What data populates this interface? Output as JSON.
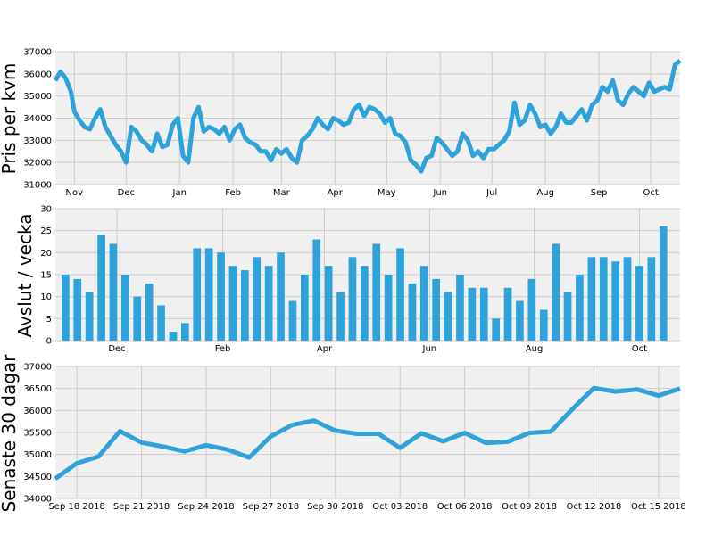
{
  "colors": {
    "series": "#30a2da",
    "background": "#f0f0f0",
    "grid": "#cbcbcb"
  },
  "chart_data": [
    {
      "type": "line",
      "ylabel": "Pris per kvm",
      "ylim": [
        31000,
        37000
      ],
      "yticks": [
        31000,
        32000,
        33000,
        34000,
        35000,
        36000,
        37000
      ],
      "xlim": [
        "2017-10-21",
        "2018-10-18"
      ],
      "xticks": [
        {
          "date": "2017-11-01",
          "label": "Nov"
        },
        {
          "date": "2017-12-01",
          "label": "Dec"
        },
        {
          "date": "2018-01-01",
          "label": "Jan"
        },
        {
          "date": "2018-02-01",
          "label": "Feb"
        },
        {
          "date": "2018-03-01",
          "label": "Mar"
        },
        {
          "date": "2018-04-01",
          "label": "Apr"
        },
        {
          "date": "2018-05-01",
          "label": "May"
        },
        {
          "date": "2018-06-01",
          "label": "Jun"
        },
        {
          "date": "2018-07-01",
          "label": "Jul"
        },
        {
          "date": "2018-08-01",
          "label": "Aug"
        },
        {
          "date": "2018-09-01",
          "label": "Sep"
        },
        {
          "date": "2018-10-01",
          "label": "Oct"
        }
      ],
      "grid": true,
      "series": [
        {
          "x": [
            "2017-10-21",
            "2017-10-24",
            "2017-10-27",
            "2017-10-30",
            "2017-11-01",
            "2017-11-04",
            "2017-11-07",
            "2017-11-10",
            "2017-11-13",
            "2017-11-16",
            "2017-11-19",
            "2017-11-22",
            "2017-11-25",
            "2017-11-28",
            "2017-12-01",
            "2017-12-04",
            "2017-12-07",
            "2017-12-10",
            "2017-12-13",
            "2017-12-16",
            "2017-12-19",
            "2017-12-22",
            "2017-12-25",
            "2017-12-28",
            "2017-12-31",
            "2018-01-03",
            "2018-01-06",
            "2018-01-09",
            "2018-01-12",
            "2018-01-15",
            "2018-01-18",
            "2018-01-21",
            "2018-01-24",
            "2018-01-27",
            "2018-01-30",
            "2018-02-02",
            "2018-02-05",
            "2018-02-08",
            "2018-02-11",
            "2018-02-14",
            "2018-02-17",
            "2018-02-20",
            "2018-02-23",
            "2018-02-26",
            "2018-03-01",
            "2018-03-04",
            "2018-03-07",
            "2018-03-10",
            "2018-03-13",
            "2018-03-16",
            "2018-03-19",
            "2018-03-22",
            "2018-03-25",
            "2018-03-28",
            "2018-03-31",
            "2018-04-03",
            "2018-04-06",
            "2018-04-09",
            "2018-04-12",
            "2018-04-15",
            "2018-04-18",
            "2018-04-21",
            "2018-04-24",
            "2018-04-27",
            "2018-04-30",
            "2018-05-03",
            "2018-05-06",
            "2018-05-09",
            "2018-05-12",
            "2018-05-15",
            "2018-05-18",
            "2018-05-21",
            "2018-05-24",
            "2018-05-27",
            "2018-05-30",
            "2018-06-02",
            "2018-06-05",
            "2018-06-08",
            "2018-06-11",
            "2018-06-14",
            "2018-06-17",
            "2018-06-20",
            "2018-06-23",
            "2018-06-26",
            "2018-06-29",
            "2018-07-02",
            "2018-07-05",
            "2018-07-08",
            "2018-07-11",
            "2018-07-14",
            "2018-07-17",
            "2018-07-20",
            "2018-07-23",
            "2018-07-26",
            "2018-07-29",
            "2018-08-01",
            "2018-08-04",
            "2018-08-07",
            "2018-08-10",
            "2018-08-13",
            "2018-08-16",
            "2018-08-19",
            "2018-08-22",
            "2018-08-25",
            "2018-08-28",
            "2018-08-31",
            "2018-09-03",
            "2018-09-06",
            "2018-09-09",
            "2018-09-12",
            "2018-09-15",
            "2018-09-18",
            "2018-09-21",
            "2018-09-24",
            "2018-09-27",
            "2018-09-30",
            "2018-10-03",
            "2018-10-06",
            "2018-10-09",
            "2018-10-12",
            "2018-10-15",
            "2018-10-18"
          ],
          "values": [
            35700,
            36100,
            35800,
            35200,
            34300,
            33900,
            33600,
            33500,
            34000,
            34400,
            33600,
            33200,
            32800,
            32500,
            32000,
            33600,
            33400,
            33000,
            32800,
            32500,
            33300,
            32700,
            32800,
            33700,
            34000,
            32300,
            32000,
            34000,
            34500,
            33400,
            33600,
            33500,
            33300,
            33600,
            33000,
            33500,
            33700,
            33100,
            32900,
            32800,
            32500,
            32500,
            32100,
            32600,
            32400,
            32600,
            32200,
            32000,
            33000,
            33200,
            33500,
            34000,
            33700,
            33500,
            34000,
            33900,
            33700,
            33800,
            34400,
            34600,
            34100,
            34500,
            34400,
            34200,
            33800,
            34000,
            33300,
            33200,
            32900,
            32100,
            31900,
            31600,
            32200,
            32300,
            33100,
            32900,
            32600,
            32300,
            32500,
            33300,
            33000,
            32300,
            32500,
            32200,
            32600,
            32600,
            32800,
            33000,
            33400,
            34700,
            33700,
            33900,
            34600,
            34200,
            33600,
            33700,
            33300,
            33600,
            34200,
            33800,
            33800,
            34100,
            34400,
            33900,
            34600,
            34800,
            35400,
            35200,
            35700,
            34800,
            34600,
            35100,
            35400,
            35200,
            35000,
            35600,
            35200,
            35300,
            35400,
            35300,
            36400,
            36600
          ]
        }
      ]
    },
    {
      "type": "bar",
      "ylabel": "Avslut / vecka",
      "ylim": [
        0,
        30
      ],
      "yticks": [
        0,
        5,
        10,
        15,
        20,
        25,
        30
      ],
      "xlim": [
        -0.85,
        51.4
      ],
      "xticks": [
        {
          "pos": 4.3,
          "label": "Dec"
        },
        {
          "pos": 13.15,
          "label": "Feb"
        },
        {
          "pos": 21.65,
          "label": "Apr"
        },
        {
          "pos": 30.45,
          "label": "Jun"
        },
        {
          "pos": 39.2,
          "label": "Aug"
        },
        {
          "pos": 48.0,
          "label": "Oct"
        }
      ],
      "grid": true,
      "series": [
        {
          "values": [
            15,
            14,
            11,
            24,
            22,
            15,
            10,
            13,
            8,
            2,
            4,
            21,
            21,
            20,
            17,
            16,
            19,
            17,
            20,
            9,
            15,
            23,
            17,
            11,
            19,
            17,
            22,
            15,
            21,
            13,
            17,
            14,
            11,
            15,
            12,
            12,
            5,
            12,
            9,
            14,
            7,
            22,
            11,
            15,
            19,
            19,
            18,
            19,
            17,
            19,
            26
          ]
        }
      ]
    },
    {
      "type": "line",
      "ylabel": "Senaste 30 dagar",
      "ylim": [
        34000,
        37000
      ],
      "yticks": [
        34000,
        34500,
        35000,
        35500,
        36000,
        36500,
        37000
      ],
      "xlim": [
        "2018-09-17",
        "2018-10-16"
      ],
      "xticks": [
        {
          "date": "2018-09-18",
          "label": "Sep 18 2018"
        },
        {
          "date": "2018-09-21",
          "label": "Sep 21 2018"
        },
        {
          "date": "2018-09-24",
          "label": "Sep 24 2018"
        },
        {
          "date": "2018-09-27",
          "label": "Sep 27 2018"
        },
        {
          "date": "2018-09-30",
          "label": "Sep 30 2018"
        },
        {
          "date": "2018-10-03",
          "label": "Oct 03 2018"
        },
        {
          "date": "2018-10-06",
          "label": "Oct 06 2018"
        },
        {
          "date": "2018-10-09",
          "label": "Oct 09 2018"
        },
        {
          "date": "2018-10-12",
          "label": "Oct 12 2018"
        },
        {
          "date": "2018-10-15",
          "label": "Oct 15 2018"
        }
      ],
      "grid": true,
      "series": [
        {
          "x": [
            "2018-09-17",
            "2018-09-18",
            "2018-09-19",
            "2018-09-20",
            "2018-09-21",
            "2018-09-22",
            "2018-09-23",
            "2018-09-24",
            "2018-09-25",
            "2018-09-26",
            "2018-09-27",
            "2018-09-28",
            "2018-09-29",
            "2018-09-30",
            "2018-10-01",
            "2018-10-02",
            "2018-10-03",
            "2018-10-04",
            "2018-10-05",
            "2018-10-06",
            "2018-10-07",
            "2018-10-08",
            "2018-10-09",
            "2018-10-10",
            "2018-10-11",
            "2018-10-12",
            "2018-10-13",
            "2018-10-14",
            "2018-10-15",
            "2018-10-16"
          ],
          "values": [
            34450,
            34800,
            34950,
            35530,
            35270,
            35180,
            35070,
            35210,
            35110,
            34930,
            35410,
            35670,
            35770,
            35540,
            35470,
            35470,
            35150,
            35480,
            35300,
            35490,
            35260,
            35290,
            35490,
            35520,
            36030,
            36510,
            36430,
            36480,
            36340,
            36500
          ]
        }
      ]
    }
  ]
}
